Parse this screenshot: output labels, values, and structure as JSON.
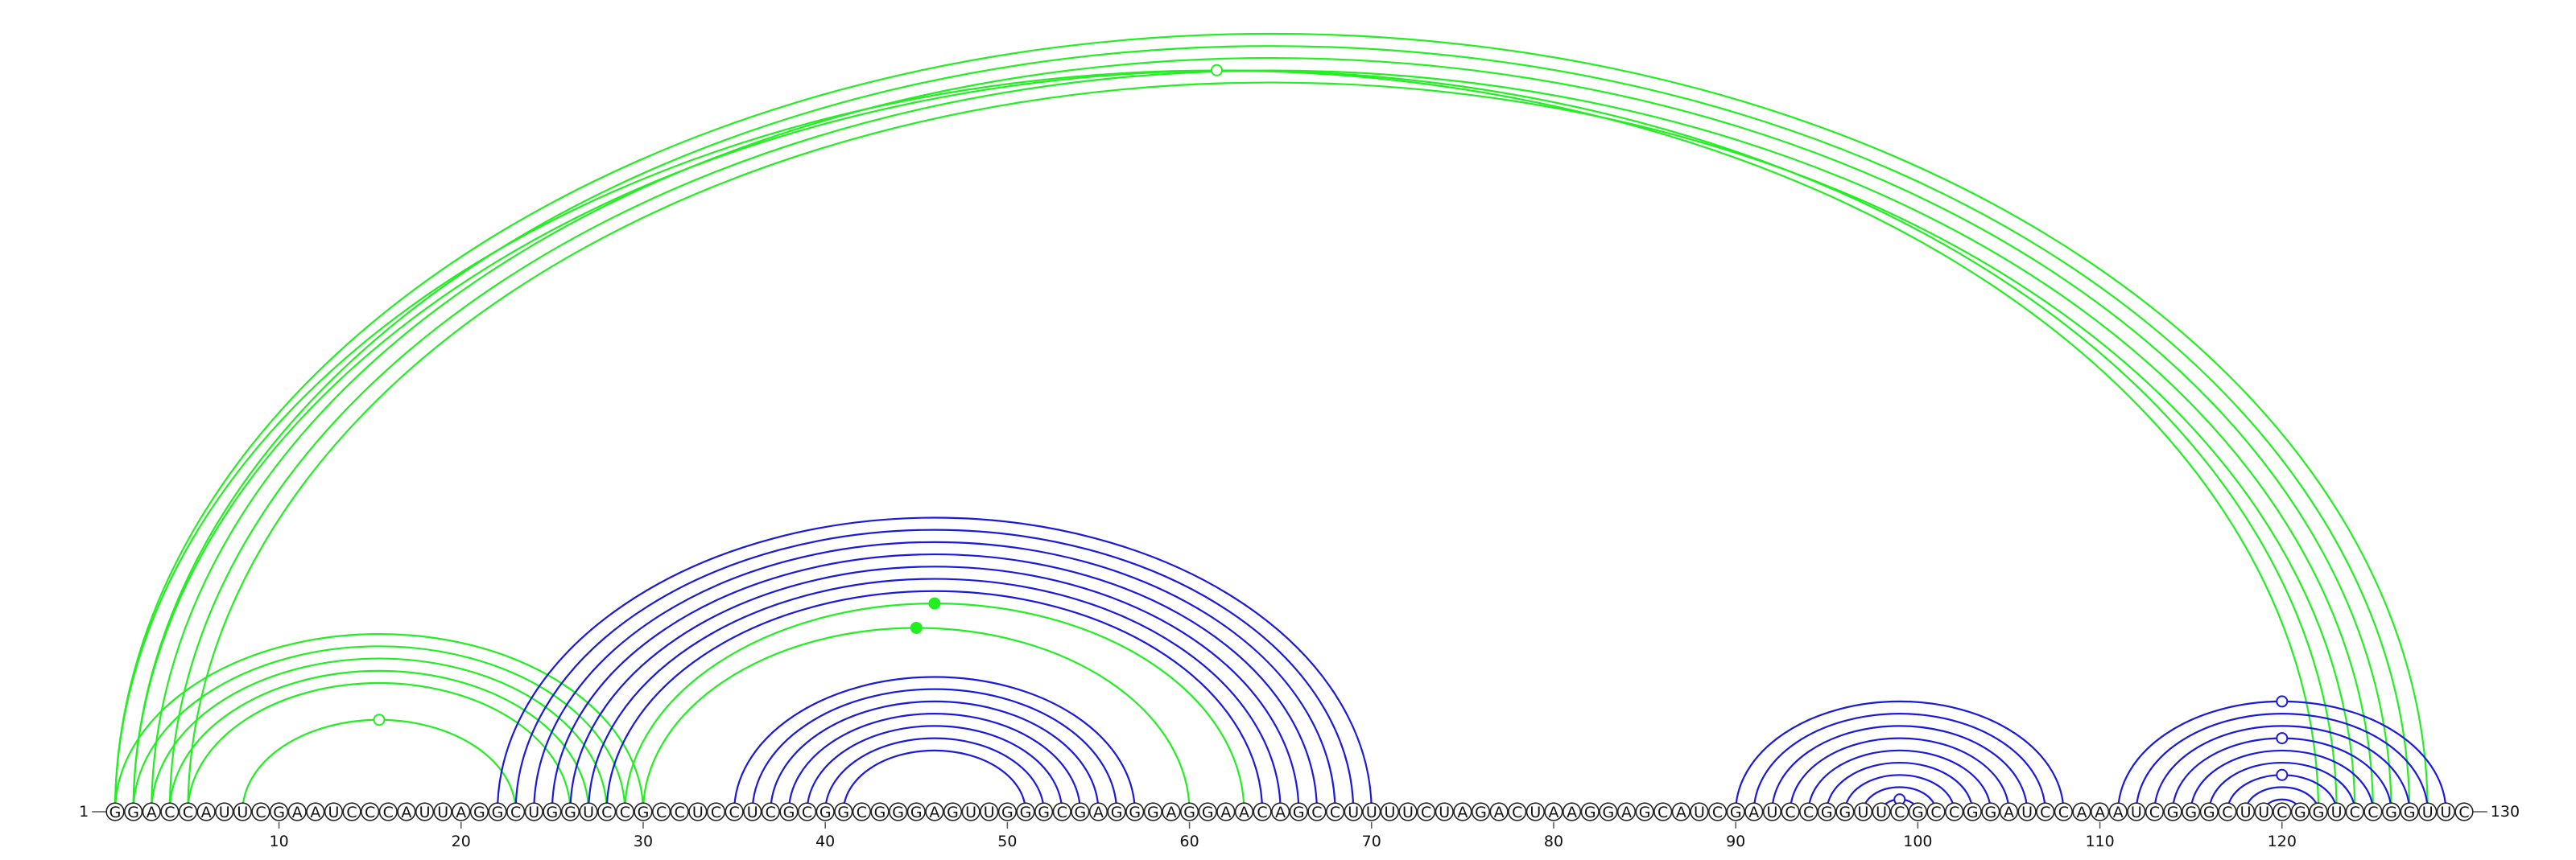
{
  "sequence": "GGACCAUUCGAAUCCCAUUAGGCUGGUCCGCCUCCUCGCGGCGGGAGUUGGGCGAGGGAGGAACAGCCUUUUCUAGACUAAGGAGCAUCGAUCCGGUUCGCCGGAUCCAAAUCGGGCUUCGGUCCGGUUC",
  "start_label": "1",
  "end_label": "130",
  "ticks": [
    "10",
    "20",
    "30",
    "40",
    "50",
    "60",
    "70",
    "80",
    "90",
    "100",
    "110",
    "120"
  ],
  "colors": {
    "green": "#22ee22",
    "blue": "#1a1add"
  },
  "arcs": [
    {
      "i": 1,
      "j": 128,
      "c": "green"
    },
    {
      "i": 2,
      "j": 127,
      "c": "green"
    },
    {
      "i": 3,
      "j": 126,
      "c": "green"
    },
    {
      "i": 4,
      "j": 125,
      "c": "green"
    },
    {
      "i": 5,
      "j": 124,
      "c": "green"
    },
    {
      "i": 1,
      "j": 122,
      "c": "green"
    },
    {
      "i": 2,
      "j": 123,
      "c": "green"
    },
    {
      "i": 1,
      "j": 30,
      "c": "green"
    },
    {
      "i": 2,
      "j": 29,
      "c": "green"
    },
    {
      "i": 3,
      "j": 28,
      "c": "green"
    },
    {
      "i": 4,
      "j": 27,
      "c": "green"
    },
    {
      "i": 5,
      "j": 26,
      "c": "green"
    },
    {
      "i": 8,
      "j": 23,
      "c": "green"
    },
    {
      "i": 22,
      "j": 70,
      "c": "blue"
    },
    {
      "i": 23,
      "j": 69,
      "c": "blue"
    },
    {
      "i": 24,
      "j": 68,
      "c": "blue"
    },
    {
      "i": 25,
      "j": 67,
      "c": "blue"
    },
    {
      "i": 26,
      "j": 66,
      "c": "blue"
    },
    {
      "i": 27,
      "j": 65,
      "c": "blue"
    },
    {
      "i": 28,
      "j": 64,
      "c": "blue"
    },
    {
      "i": 29,
      "j": 63,
      "c": "green"
    },
    {
      "i": 30,
      "j": 60,
      "c": "green"
    },
    {
      "i": 35,
      "j": 57,
      "c": "blue"
    },
    {
      "i": 36,
      "j": 56,
      "c": "blue"
    },
    {
      "i": 37,
      "j": 55,
      "c": "blue"
    },
    {
      "i": 38,
      "j": 54,
      "c": "blue"
    },
    {
      "i": 39,
      "j": 53,
      "c": "blue"
    },
    {
      "i": 40,
      "j": 52,
      "c": "blue"
    },
    {
      "i": 41,
      "j": 51,
      "c": "blue"
    },
    {
      "i": 90,
      "j": 108,
      "c": "blue"
    },
    {
      "i": 91,
      "j": 107,
      "c": "blue"
    },
    {
      "i": 92,
      "j": 106,
      "c": "blue"
    },
    {
      "i": 93,
      "j": 105,
      "c": "blue"
    },
    {
      "i": 94,
      "j": 104,
      "c": "blue"
    },
    {
      "i": 95,
      "j": 103,
      "c": "blue"
    },
    {
      "i": 96,
      "j": 102,
      "c": "blue"
    },
    {
      "i": 97,
      "j": 101,
      "c": "blue"
    },
    {
      "i": 98,
      "j": 100,
      "c": "blue"
    },
    {
      "i": 111,
      "j": 129,
      "c": "blue"
    },
    {
      "i": 112,
      "j": 128,
      "c": "blue"
    },
    {
      "i": 113,
      "j": 127,
      "c": "blue"
    },
    {
      "i": 114,
      "j": 126,
      "c": "blue"
    },
    {
      "i": 115,
      "j": 125,
      "c": "blue"
    },
    {
      "i": 116,
      "j": 124,
      "c": "blue"
    },
    {
      "i": 117,
      "j": 123,
      "c": "blue"
    },
    {
      "i": 118,
      "j": 122,
      "c": "blue"
    },
    {
      "i": 119,
      "j": 121,
      "c": "blue"
    }
  ],
  "markers": [
    {
      "i": 1,
      "j": 122,
      "type": "open",
      "c": "green"
    },
    {
      "i": 8,
      "j": 23,
      "type": "open",
      "c": "green"
    },
    {
      "i": 29,
      "j": 63,
      "type": "filled",
      "c": "green"
    },
    {
      "i": 30,
      "j": 60,
      "type": "filled",
      "c": "green"
    },
    {
      "i": 98,
      "j": 100,
      "type": "open",
      "c": "blue"
    },
    {
      "i": 111,
      "j": 129,
      "type": "open",
      "c": "blue"
    },
    {
      "i": 114,
      "j": 126,
      "type": "open",
      "c": "blue"
    },
    {
      "i": 117,
      "j": 123,
      "type": "open",
      "c": "blue"
    }
  ]
}
